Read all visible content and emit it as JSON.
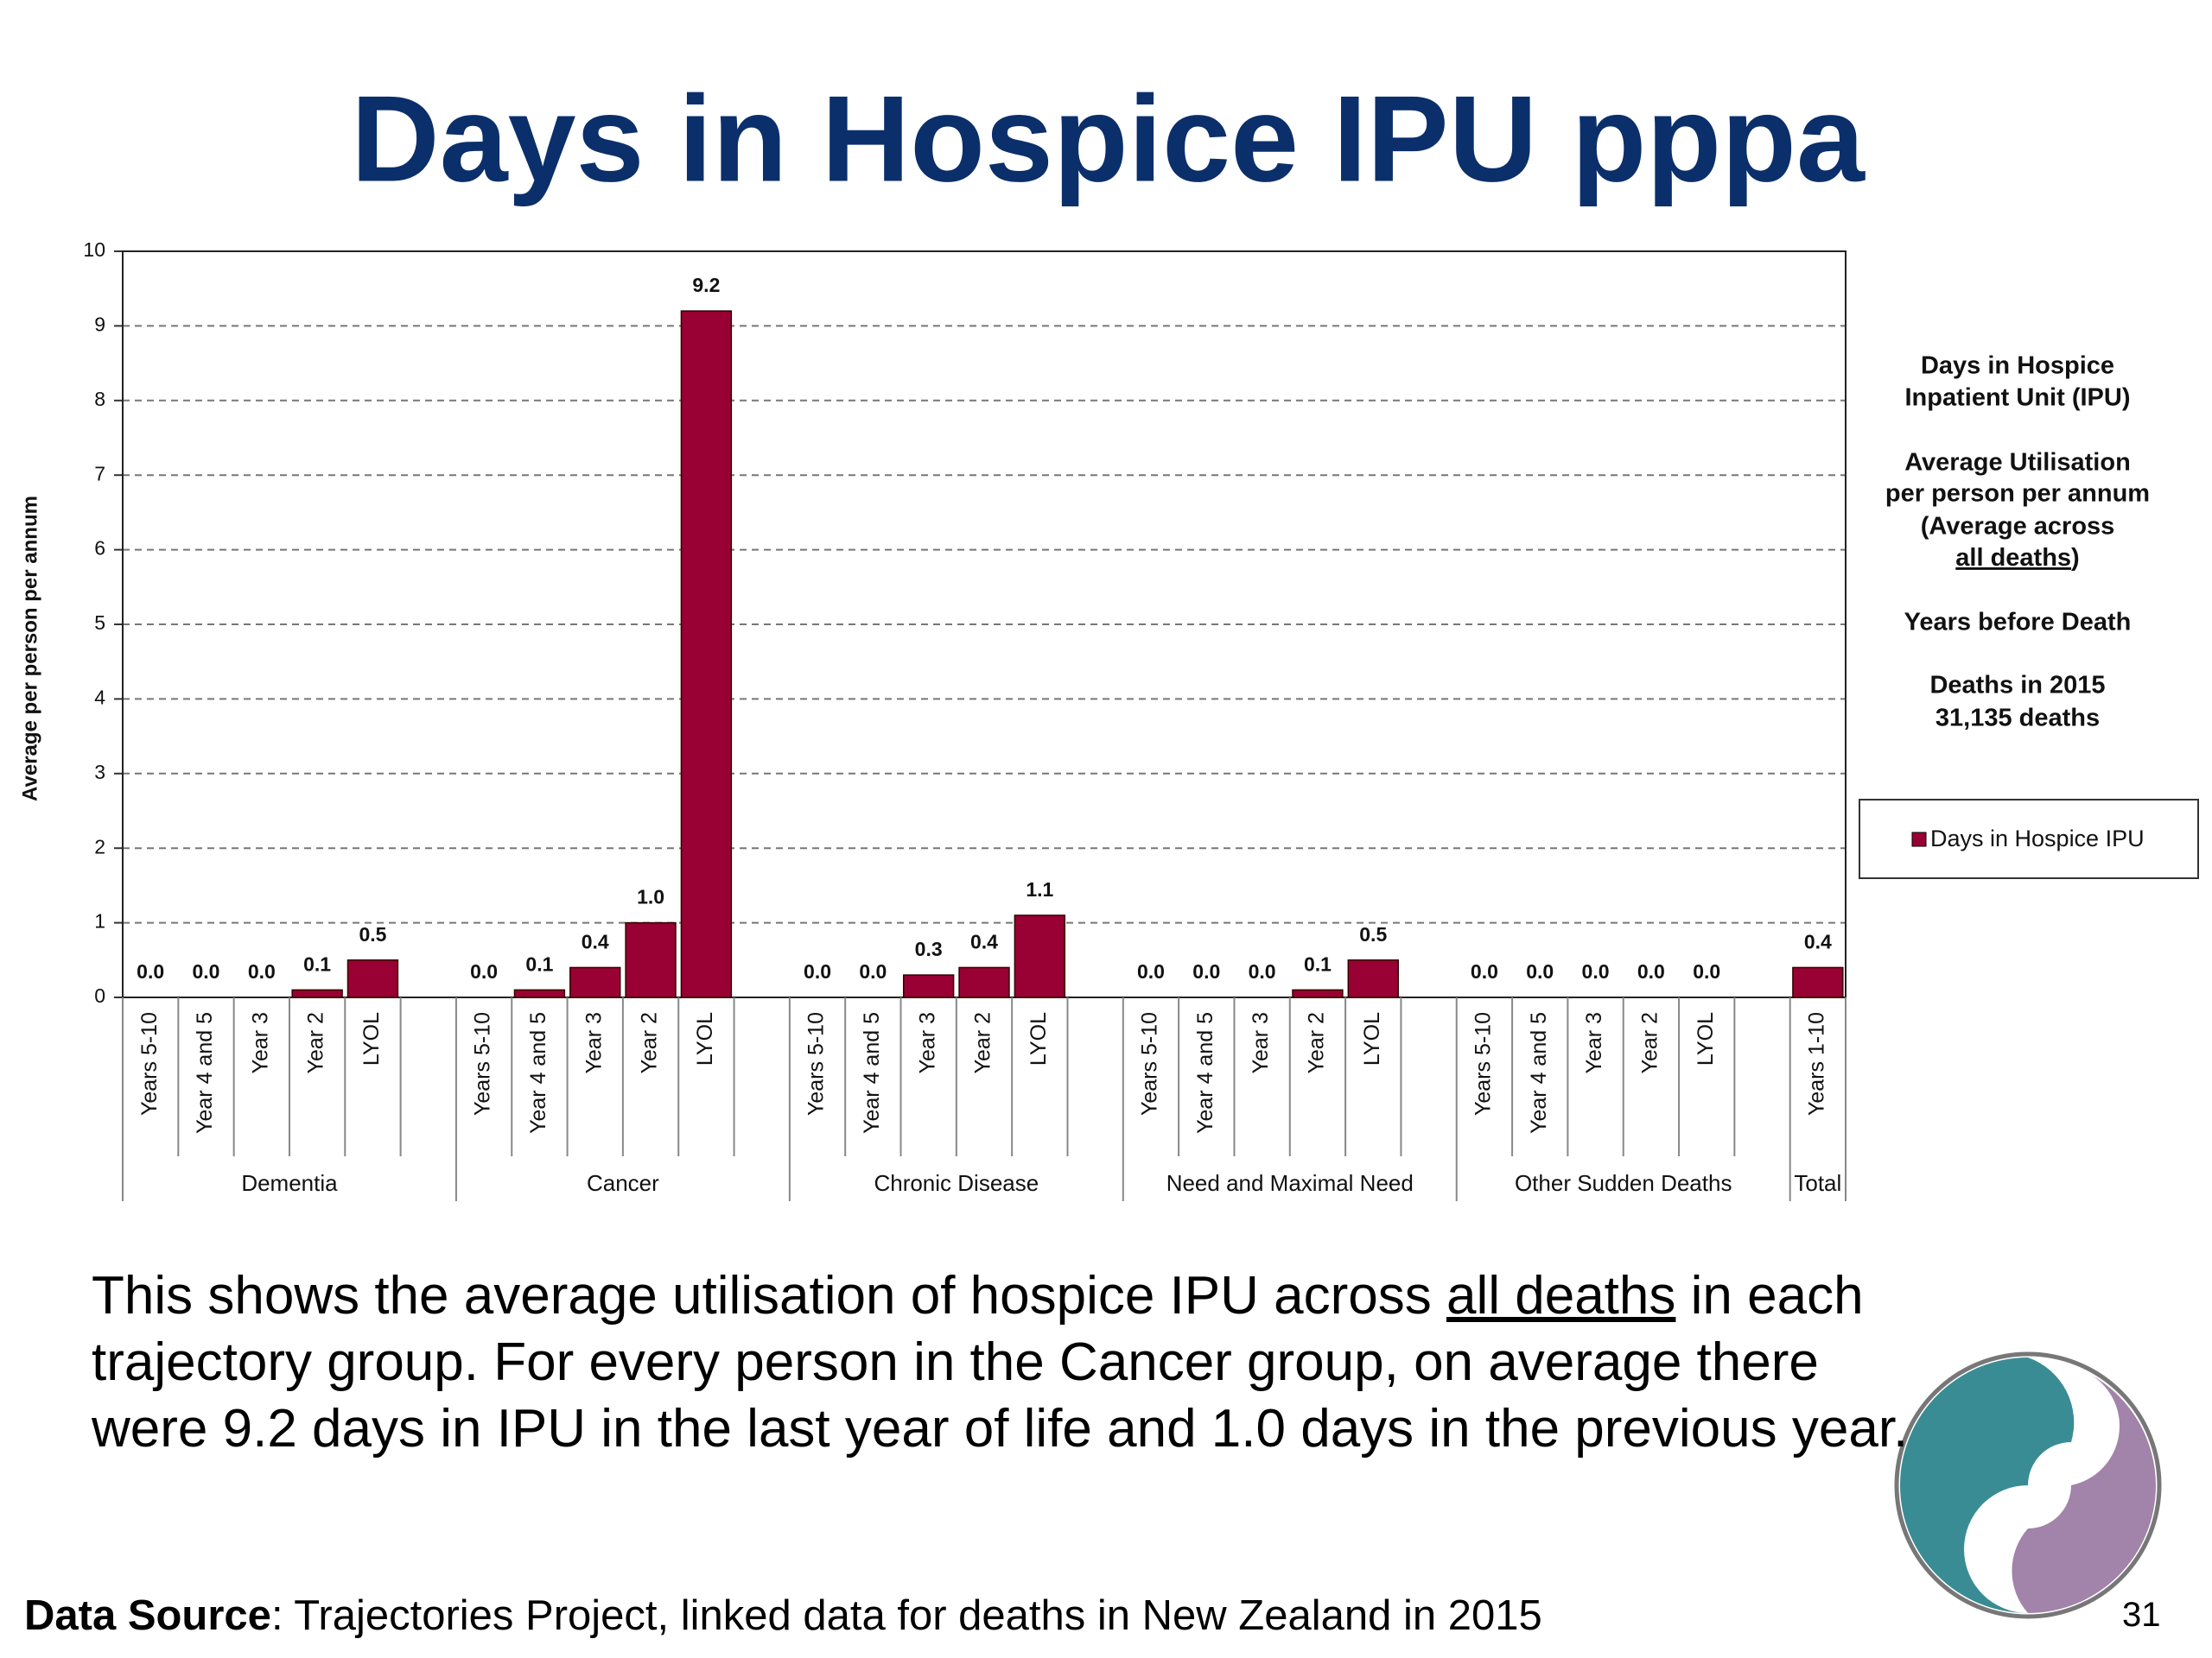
{
  "chart_data": {
    "type": "bar",
    "title": "Days in Hospice IPU pppa",
    "y_label": "Average per person per annum",
    "groups": [
      {
        "name": "Dementia",
        "categories": [
          "Years 5-10",
          "Year 4 and 5",
          "Year 3",
          "Year 2",
          "LYOL"
        ],
        "values": [
          0,
          0,
          0,
          0.1,
          0.5
        ],
        "value_labels": [
          "0.0",
          "0.0",
          "0.0",
          "0.1",
          "0.5"
        ]
      },
      {
        "name": "Cancer",
        "categories": [
          "Years 5-10",
          "Year 4 and 5",
          "Year 3",
          "Year 2",
          "LYOL"
        ],
        "values": [
          0,
          0.1,
          0.4,
          1,
          9.2
        ],
        "value_labels": [
          "0.0",
          "0.1",
          "0.4",
          "1.0",
          "9.2"
        ]
      },
      {
        "name": "Chronic Disease",
        "categories": [
          "Years 5-10",
          "Year 4 and 5",
          "Year 3",
          "Year 2",
          "LYOL"
        ],
        "values": [
          0,
          0,
          0.3,
          0.4,
          1.1
        ],
        "value_labels": [
          "0.0",
          "0.0",
          "0.3",
          "0.4",
          "1.1"
        ]
      },
      {
        "name": "Need and Maximal Need",
        "categories": [
          "Years 5-10",
          "Year 4 and 5",
          "Year 3",
          "Year 2",
          "LYOL"
        ],
        "values": [
          0,
          0,
          0,
          0.1,
          0.5
        ],
        "value_labels": [
          "0.0",
          "0.0",
          "0.0",
          "0.1",
          "0.5"
        ]
      },
      {
        "name": "Other Sudden Deaths",
        "categories": [
          "Years 5-10",
          "Year 4 and 5",
          "Year 3",
          "Year 2",
          "LYOL"
        ],
        "values": [
          0,
          0,
          0,
          0,
          0
        ],
        "value_labels": [
          "0.0",
          "0.0",
          "0.0",
          "0.0",
          "0.0"
        ]
      },
      {
        "name": "Total",
        "categories": [
          "Years 1-10"
        ],
        "values": [
          0.4
        ],
        "value_labels": [
          "0.4"
        ]
      }
    ],
    "series_name": "Days in Hospice IPU",
    "color": "#990033",
    "ylim": [
      0,
      10
    ],
    "yticks": [
      0,
      1,
      2,
      3,
      4,
      5,
      6,
      7,
      8,
      9,
      10
    ],
    "grid": true
  },
  "side_note": {
    "lines": [
      "Days in Hospice",
      "Inpatient Unit (IPU)",
      "Average Utilisation",
      "per person per annum",
      "(Average across"
    ],
    "underlined": "all deaths",
    "close": ")",
    "years": "Years before Death",
    "deaths": [
      "Deaths in 2015",
      "31,135 deaths"
    ]
  },
  "text": {
    "before": "This shows the average utilisation of hospice IPU across ",
    "underlined": "all deaths",
    "after": " in each trajectory group. For every person in the Cancer group, on average there were 9.2 days in IPU in the last year of life and 1.0 days in the previous year."
  },
  "footer": {
    "source_label": "Data Source",
    "source_text": ": Trajectories Project, linked data for deaths in New Zealand in 2015",
    "page_number": "31"
  }
}
